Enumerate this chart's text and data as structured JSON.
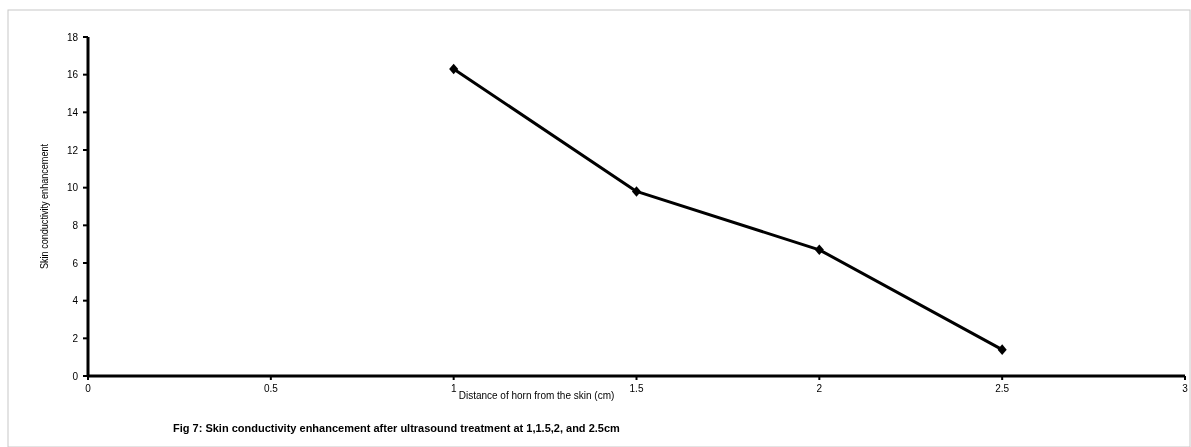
{
  "chart_data": {
    "type": "line",
    "xlabel": "Distance of horn from the skin (cm)",
    "ylabel": "Skin conductivity enhancement",
    "annotations": [
      "Fig 7: Skin conductivity enhancement after ultrasound treatment at 1,1.5,2, and 2.5cm"
    ],
    "x": [
      1,
      1.5,
      2,
      2.5
    ],
    "series": [
      {
        "color": "#000000",
        "values": [
          16.3,
          9.8,
          6.7,
          1.4
        ]
      }
    ],
    "xlim": [
      0,
      3
    ],
    "xticks": [
      0,
      0.5,
      1,
      1.5,
      2,
      2.5,
      3
    ],
    "ylim": [
      0,
      18
    ],
    "yticks": [
      0,
      2,
      4,
      6,
      8,
      10,
      12,
      14,
      16,
      18
    ],
    "grid": false,
    "marker": "diamond",
    "line_style": "solid"
  }
}
